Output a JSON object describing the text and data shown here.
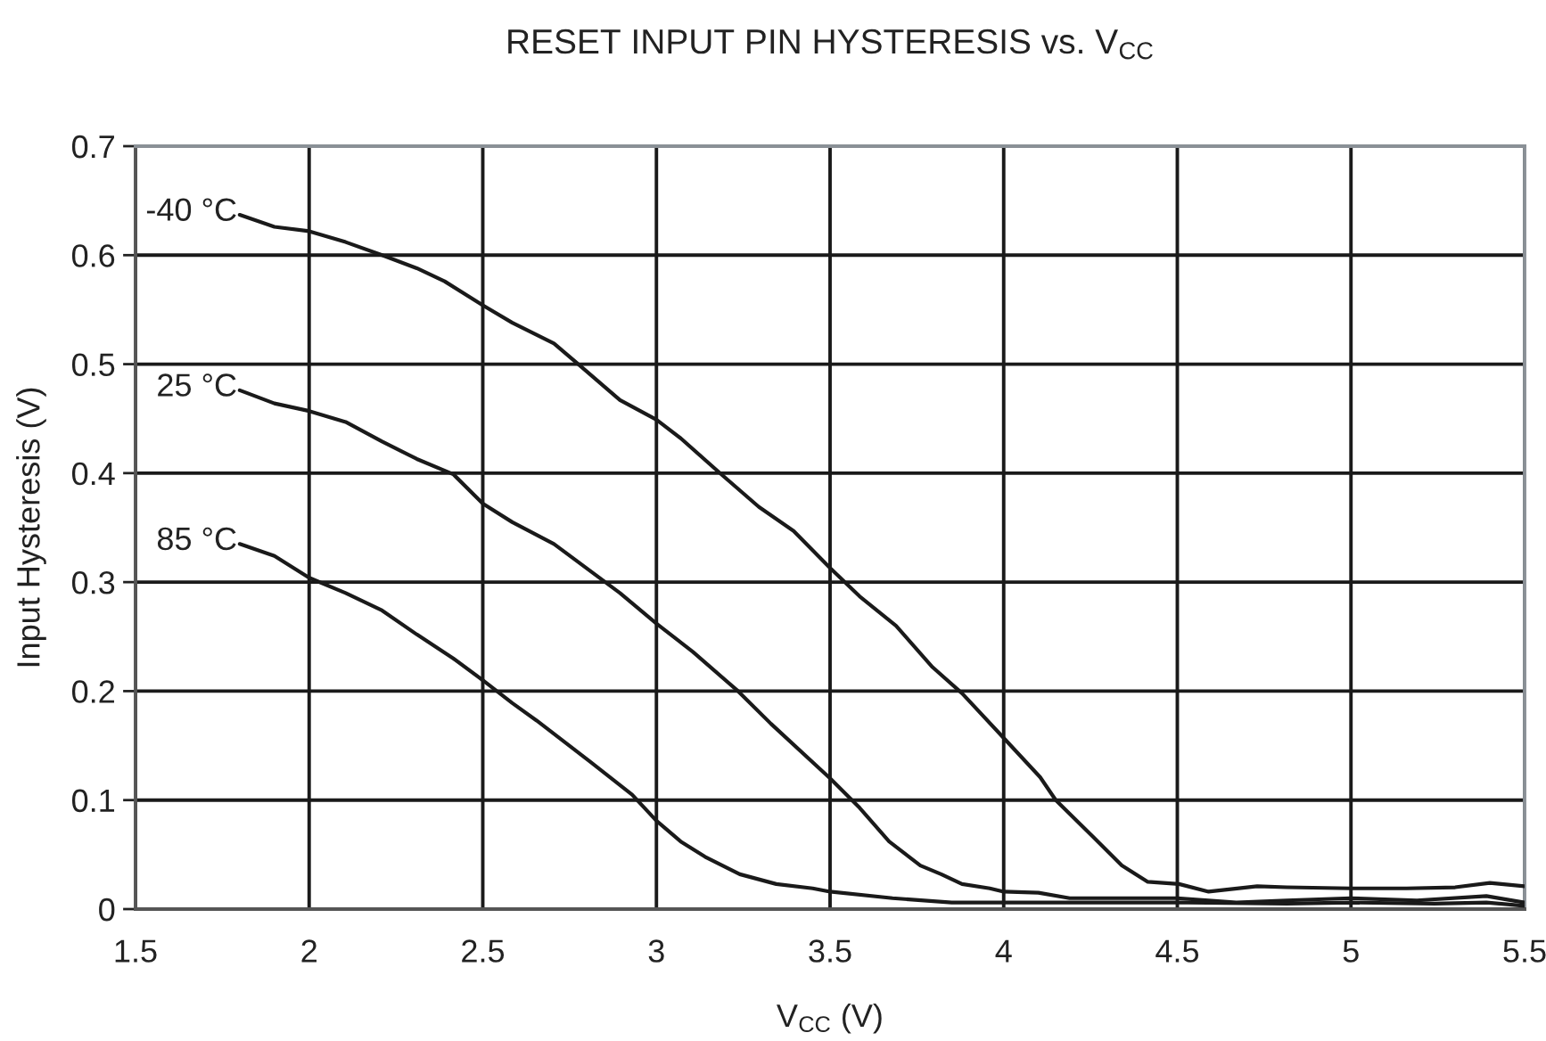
{
  "chart_data": {
    "type": "line",
    "title": "RESET INPUT PIN HYSTERESIS vs. V$_{CC}$",
    "xlabel": "V$_{CC}$ (V)",
    "ylabel": "Input Hysteresis (V)",
    "xlim": [
      1.5,
      5.5
    ],
    "ylim": [
      0,
      0.7
    ],
    "xticks": [
      1.5,
      2,
      2.5,
      3,
      3.5,
      4,
      4.5,
      5,
      5.5
    ],
    "yticks": [
      0,
      0.1,
      0.2,
      0.3,
      0.4,
      0.5,
      0.6,
      0.7
    ],
    "grid": true,
    "series": [
      {
        "name": "-40 °C",
        "color": "#1a1a1a",
        "x": [
          1.8,
          1.9,
          2.0,
          2.105,
          2.21,
          2.31,
          2.39,
          2.5,
          2.585,
          2.705,
          2.775,
          2.895,
          3.0,
          3.07,
          3.19,
          3.295,
          3.395,
          3.5,
          3.585,
          3.69,
          3.795,
          3.88,
          4.0,
          4.105,
          4.15,
          4.255,
          4.34,
          4.415,
          4.505,
          4.59,
          4.73,
          4.815,
          5.0,
          5.16,
          5.3,
          5.4,
          5.5
        ],
        "values": [
          0.637,
          0.626,
          0.622,
          0.612,
          0.6,
          0.588,
          0.576,
          0.554,
          0.538,
          0.519,
          0.5,
          0.467,
          0.449,
          0.432,
          0.398,
          0.369,
          0.347,
          0.313,
          0.287,
          0.26,
          0.222,
          0.198,
          0.157,
          0.121,
          0.1,
          0.067,
          0.04,
          0.025,
          0.023,
          0.016,
          0.021,
          0.02,
          0.019,
          0.019,
          0.02,
          0.024,
          0.021
        ]
      },
      {
        "name": "25 °C",
        "color": "#1a1a1a",
        "x": [
          1.8,
          1.9,
          2.0,
          2.105,
          2.21,
          2.31,
          2.415,
          2.5,
          2.585,
          2.705,
          2.895,
          3.0,
          3.105,
          3.235,
          3.33,
          3.5,
          3.585,
          3.67,
          3.76,
          3.82,
          3.88,
          3.96,
          4.0,
          4.1,
          4.19,
          4.5,
          4.67,
          4.815,
          5.0,
          5.19,
          5.39,
          5.5
        ],
        "values": [
          0.476,
          0.464,
          0.457,
          0.447,
          0.429,
          0.413,
          0.399,
          0.372,
          0.355,
          0.335,
          0.29,
          0.262,
          0.236,
          0.2,
          0.17,
          0.12,
          0.093,
          0.062,
          0.04,
          0.032,
          0.023,
          0.019,
          0.016,
          0.015,
          0.01,
          0.01,
          0.006,
          0.008,
          0.01,
          0.008,
          0.012,
          0.006
        ]
      },
      {
        "name": "85 °C",
        "color": "#1a1a1a",
        "x": [
          1.8,
          1.9,
          2.0,
          2.105,
          2.21,
          2.31,
          2.415,
          2.5,
          2.585,
          2.655,
          2.81,
          2.93,
          3.0,
          3.07,
          3.14,
          3.24,
          3.345,
          3.45,
          3.5,
          3.68,
          3.85,
          4.0,
          4.245,
          4.53,
          4.815,
          5.0,
          5.24,
          5.39,
          5.5
        ],
        "values": [
          0.335,
          0.324,
          0.304,
          0.29,
          0.274,
          0.252,
          0.23,
          0.21,
          0.189,
          0.173,
          0.135,
          0.105,
          0.081,
          0.062,
          0.048,
          0.032,
          0.023,
          0.019,
          0.016,
          0.01,
          0.006,
          0.006,
          0.006,
          0.006,
          0.005,
          0.006,
          0.005,
          0.006,
          0.003
        ]
      }
    ]
  }
}
